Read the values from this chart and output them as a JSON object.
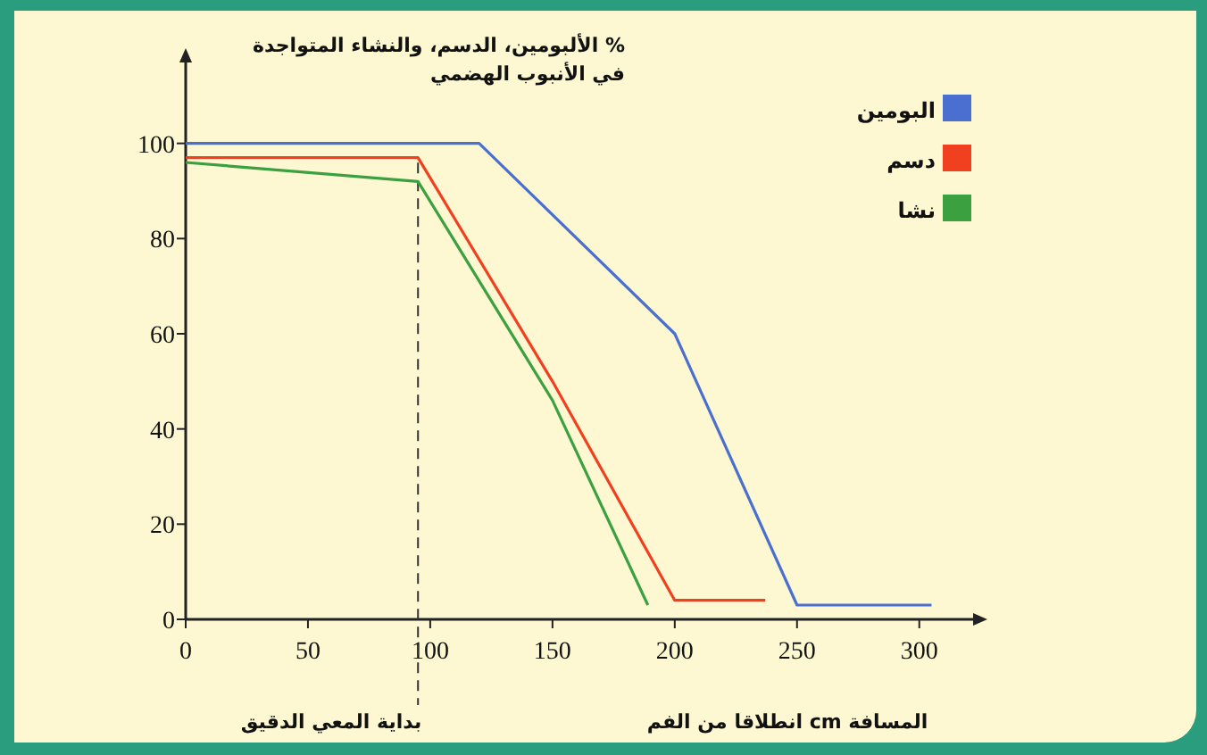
{
  "chart_data": {
    "type": "line",
    "ylabel": "% الألبومين، الدسم، والنشاء المتواجدة في الأنبوب الهضمي",
    "xlabel": "المسافة cm انطلاقا من الفم",
    "xlim": [
      0,
      322
    ],
    "ylim": [
      0,
      117
    ],
    "xticks": [
      0,
      50,
      100,
      150,
      200,
      250,
      300
    ],
    "yticks": [
      0,
      20,
      40,
      60,
      80,
      100
    ],
    "grid": false,
    "legend": "top right",
    "marker": "none",
    "line_style": "solid",
    "ref_lines": [
      {
        "axis": "x",
        "value": 95,
        "label": "بداية المعي الدقيق",
        "color": "#333333",
        "line_style": "dashed"
      }
    ],
    "series": [
      {
        "name": "البومين",
        "color": "#4a6fd0",
        "x": [
          0,
          120,
          200,
          250,
          305
        ],
        "values": [
          100,
          100,
          60,
          3,
          3
        ]
      },
      {
        "name": "دسم",
        "color": "#f04020",
        "x": [
          0,
          95,
          150,
          200,
          237
        ],
        "values": [
          97,
          97,
          50,
          4,
          4
        ]
      },
      {
        "name": "نشا",
        "color": "#3aa040",
        "x": [
          0,
          95,
          150,
          189
        ],
        "values": [
          96,
          92,
          46,
          3
        ]
      }
    ]
  }
}
